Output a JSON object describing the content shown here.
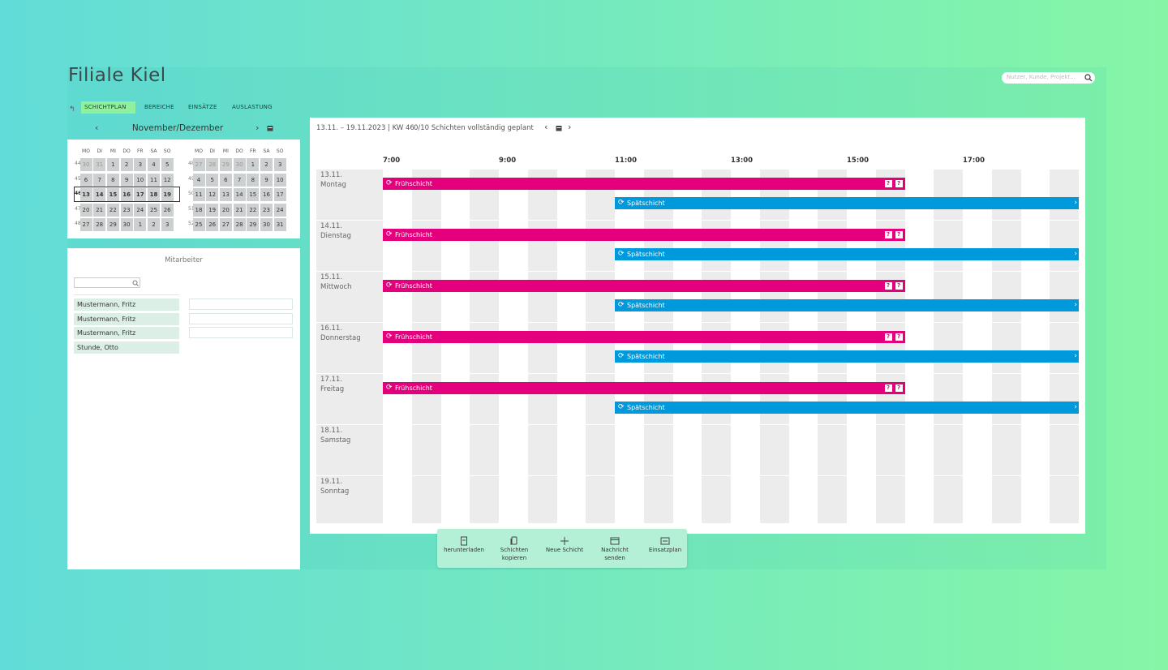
{
  "header": {
    "title": "Filiale Kiel",
    "search_placeholder": "Nutzer, Kunde, Projekt..."
  },
  "tabs": [
    "SCHICHTPLAN",
    "BEREICHE",
    "EINSÄTZE",
    "AUSLASTUNG"
  ],
  "calendar": {
    "title": "November/Dezember",
    "selected_week": 46,
    "months": [
      {
        "weekdays": [
          "MO",
          "DI",
          "MI",
          "DO",
          "FR",
          "SA",
          "SO"
        ],
        "weeks": [
          {
            "number": 44,
            "days": [
              30,
              31,
              1,
              2,
              3,
              4,
              5
            ]
          },
          {
            "number": 45,
            "days": [
              6,
              7,
              8,
              9,
              10,
              11,
              12
            ]
          },
          {
            "number": 46,
            "days": [
              13,
              14,
              15,
              16,
              17,
              18,
              19
            ]
          },
          {
            "number": 47,
            "days": [
              20,
              21,
              22,
              23,
              24,
              25,
              26
            ]
          },
          {
            "number": 48,
            "days": [
              27,
              28,
              29,
              30,
              1,
              2,
              3
            ]
          }
        ]
      },
      {
        "weekdays": [
          "MO",
          "DI",
          "MI",
          "DO",
          "FR",
          "SA",
          "SO"
        ],
        "weeks": [
          {
            "number": 48,
            "days": [
              27,
              28,
              29,
              30,
              1,
              2,
              3
            ]
          },
          {
            "number": 49,
            "days": [
              4,
              5,
              6,
              7,
              8,
              9,
              10
            ]
          },
          {
            "number": 50,
            "days": [
              11,
              12,
              13,
              14,
              15,
              16,
              17
            ]
          },
          {
            "number": 51,
            "days": [
              18,
              19,
              20,
              21,
              22,
              23,
              24
            ]
          },
          {
            "number": 52,
            "days": [
              25,
              26,
              27,
              28,
              29,
              30,
              31
            ]
          }
        ]
      }
    ]
  },
  "employees": {
    "title": "Mitarbeiter",
    "list": [
      "Mustermann, Fritz",
      "Mustermann, Fritz",
      "Mustermann, Fritz",
      "Stunde, Otto"
    ]
  },
  "schedule": {
    "range": "13.11. – 19.11.2023 | KW 46",
    "status": "0/10 Schichten vollständig geplant",
    "hours": [
      "7:00",
      "9:00",
      "11:00",
      "13:00",
      "15:00",
      "17:00"
    ],
    "days": [
      {
        "date": "13.11.",
        "name": "Montag",
        "shifts": [
          {
            "name": "Frühschicht",
            "color": "#e4007c",
            "flags": [
              "?",
              "?"
            ]
          },
          {
            "name": "Spätschicht",
            "color": "#0099dc"
          }
        ]
      },
      {
        "date": "14.11.",
        "name": "Dienstag",
        "shifts": [
          {
            "name": "Frühschicht",
            "color": "#e4007c",
            "flags": [
              "?",
              "?"
            ]
          },
          {
            "name": "Spätschicht",
            "color": "#0099dc"
          }
        ]
      },
      {
        "date": "15.11.",
        "name": "Mittwoch",
        "shifts": [
          {
            "name": "Frühschicht",
            "color": "#e4007c",
            "flags": [
              "?",
              "?"
            ]
          },
          {
            "name": "Spätschicht",
            "color": "#0099dc"
          }
        ]
      },
      {
        "date": "16.11.",
        "name": "Donnerstag",
        "shifts": [
          {
            "name": "Frühschicht",
            "color": "#e4007c",
            "flags": [
              "?",
              "?"
            ]
          },
          {
            "name": "Spätschicht",
            "color": "#0099dc"
          }
        ]
      },
      {
        "date": "17.11.",
        "name": "Freitag",
        "shifts": [
          {
            "name": "Frühschicht",
            "color": "#e4007c",
            "flags": [
              "?",
              "?"
            ]
          },
          {
            "name": "Spätschicht",
            "color": "#0099dc"
          }
        ]
      },
      {
        "date": "18.11.",
        "name": "Samstag",
        "shifts": []
      },
      {
        "date": "19.11.",
        "name": "Sonntag",
        "shifts": []
      }
    ]
  },
  "toolbar": [
    "herunterladen",
    "Schichten kopieren",
    "Neue Schicht",
    "Nachricht senden",
    "Einsatzplan"
  ]
}
